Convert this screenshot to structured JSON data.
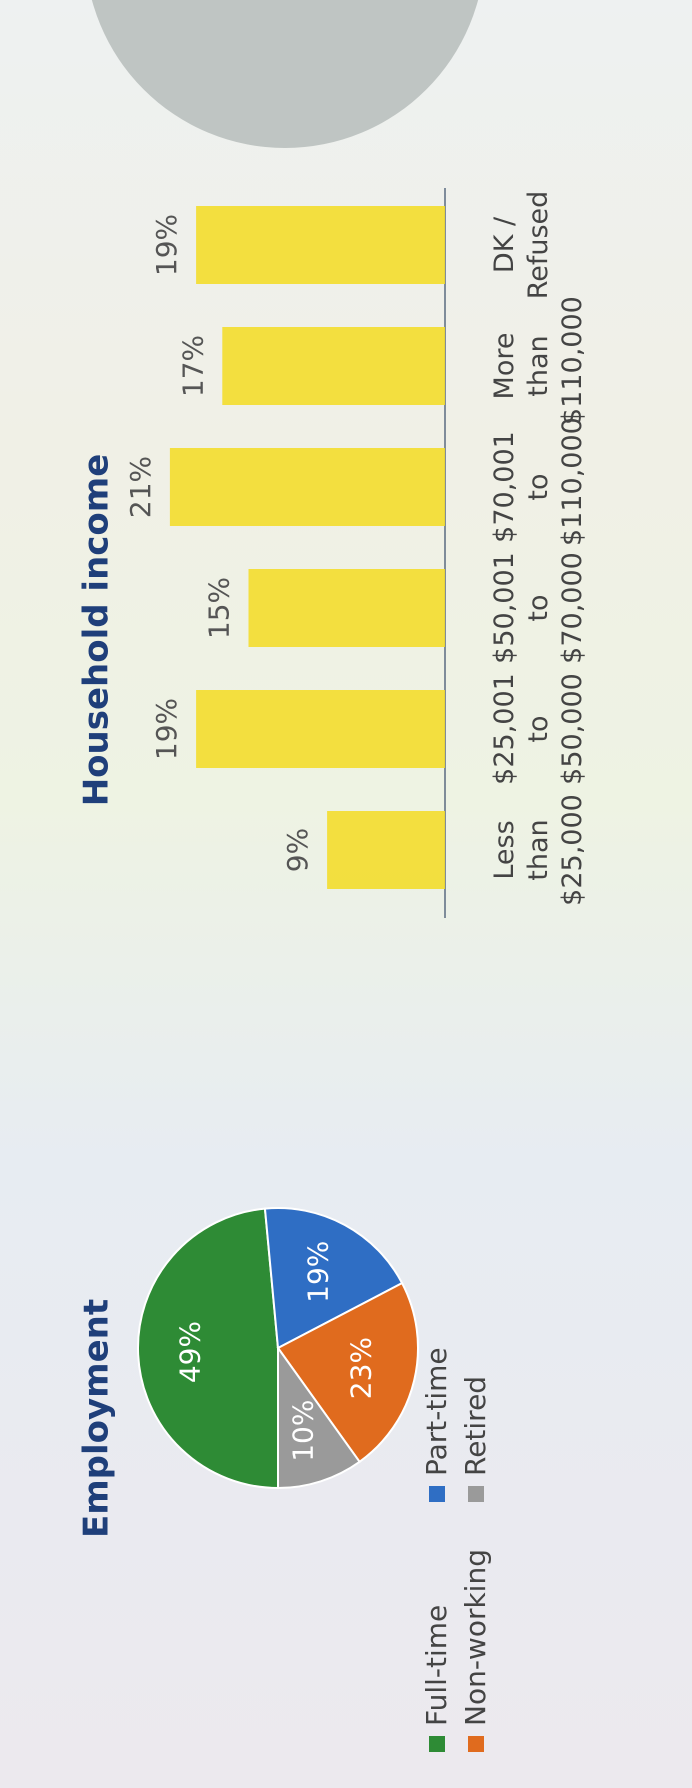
{
  "chart_data": [
    {
      "type": "pie",
      "title": "Employment",
      "categories": [
        "Full-time",
        "Part-time",
        "Non-working",
        "Retired"
      ],
      "values": [
        49,
        19,
        23,
        10
      ],
      "value_labels": [
        "49%",
        "19%",
        "23%",
        "10%"
      ],
      "colors": [
        "#2e8b35",
        "#2f6ec4",
        "#e06b1e",
        "#9a9a9a"
      ]
    },
    {
      "type": "bar",
      "title": "Household income",
      "categories": [
        "Less than $25,000",
        "$25,001 to $50,000",
        "$50,001 to $70,000",
        "$70,001 to $110,000",
        "More than $110,000",
        "DK / Refused"
      ],
      "values": [
        9,
        19,
        15,
        21,
        17,
        19
      ],
      "value_labels": [
        "9%",
        "19%",
        "15%",
        "21%",
        "17%",
        "19%"
      ],
      "color": "#f3dd2c"
    }
  ]
}
